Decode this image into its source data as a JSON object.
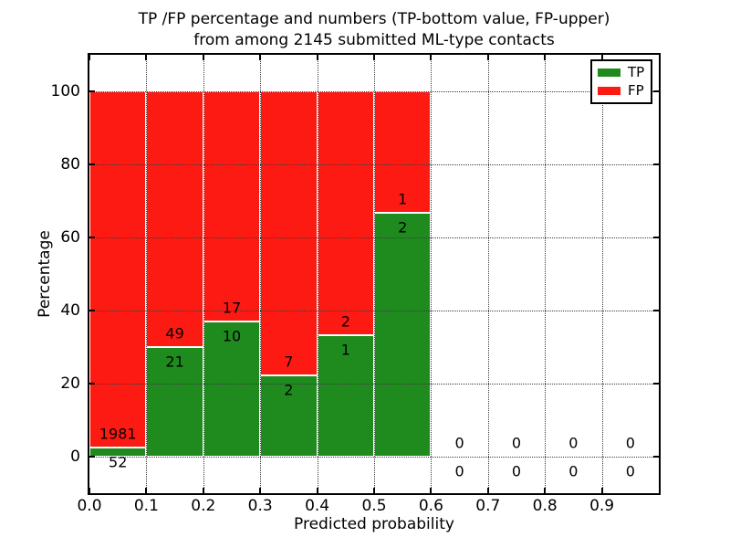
{
  "figure": {
    "title_line1": "TP /FP percentage and numbers (TP-bottom value, FP-upper)",
    "title_line2": "from among 2145 submitted ML-type contacts"
  },
  "axes": {
    "xlabel": "Predicted probability",
    "ylabel": "Percentage",
    "ytick_labels": [
      "0",
      "20",
      "40",
      "60",
      "80",
      "100"
    ],
    "xtick_labels": [
      "0.0",
      "0.1",
      "0.2",
      "0.3",
      "0.4",
      "0.5",
      "0.6",
      "0.7",
      "0.8",
      "0.9"
    ]
  },
  "legend": {
    "items": [
      {
        "label": "TP",
        "color": "#1f8b1f"
      },
      {
        "label": "FP",
        "color": "#fd1a12"
      }
    ]
  },
  "chart_data": {
    "type": "bar",
    "stacked": true,
    "normalized_to_100_percent": true,
    "title": "TP /FP percentage and numbers (TP-bottom value, FP-upper) from among 2145 submitted ML-type contacts",
    "xlabel": "Predicted probability",
    "ylabel": "Percentage",
    "total_contacts": 2145,
    "xlim": [
      0.0,
      1.0
    ],
    "ylim_visible_percent": [
      -17,
      110
    ],
    "bin_width": 0.1,
    "bins": [
      "0.0-0.1",
      "0.1-0.2",
      "0.2-0.3",
      "0.3-0.4",
      "0.4-0.5",
      "0.5-0.6",
      "0.6-0.7",
      "0.7-0.8",
      "0.8-0.9",
      "0.9-1.0"
    ],
    "series": [
      {
        "name": "TP",
        "color": "#1f8b1f",
        "counts": [
          52,
          21,
          10,
          2,
          1,
          2,
          0,
          0,
          0,
          0
        ]
      },
      {
        "name": "FP",
        "color": "#fd1a12",
        "counts": [
          1981,
          49,
          17,
          7,
          2,
          1,
          0,
          0,
          0,
          0
        ]
      }
    ],
    "tp_percent_per_bin": [
      2.56,
      30.0,
      37.04,
      22.22,
      33.33,
      66.67,
      0,
      0,
      0,
      0
    ],
    "grid": "dotted",
    "legend_position": "upper right"
  }
}
